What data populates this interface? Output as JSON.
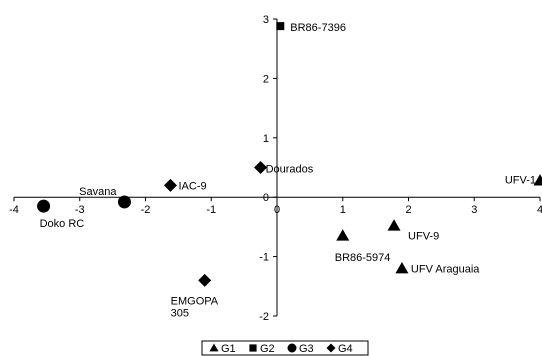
{
  "chart_data": {
    "type": "scatter",
    "title": "",
    "xlabel": "",
    "ylabel": "",
    "xlim": [
      -4,
      4
    ],
    "ylim": [
      -2,
      3
    ],
    "x_ticks": [
      "-4",
      "-3",
      "-2",
      "-1",
      "0",
      "1",
      "2",
      "3",
      "4"
    ],
    "y_ticks": [
      "-2",
      "-1",
      "0",
      "1",
      "2",
      "3"
    ],
    "grid": false,
    "legend_placement": "bottom-center",
    "legend": [
      {
        "group": "G1",
        "label": "G1",
        "marker": "triangle"
      },
      {
        "group": "G2",
        "label": "G2",
        "marker": "square"
      },
      {
        "group": "G3",
        "label": "G3",
        "marker": "circle"
      },
      {
        "group": "G4",
        "label": "G4",
        "marker": "diamond"
      }
    ],
    "points": [
      {
        "label": "BR86-7396",
        "group": "G2",
        "x": 0.05,
        "y": 2.88
      },
      {
        "label": "Dourados",
        "group": "G4",
        "x": -0.25,
        "y": 0.5
      },
      {
        "label": "IAC-9",
        "group": "G4",
        "x": -1.62,
        "y": 0.2
      },
      {
        "label": "Savana",
        "group": "G3",
        "x": -2.32,
        "y": -0.08
      },
      {
        "label": "Doko RC",
        "group": "G3",
        "x": -3.55,
        "y": -0.15
      },
      {
        "label": "EMGOPA 305",
        "group": "G4",
        "x": -1.1,
        "y": -1.4
      },
      {
        "label": "UFV-1",
        "group": "G1",
        "x": 4.0,
        "y": 0.28
      },
      {
        "label": "UFV-9",
        "group": "G1",
        "x": 1.78,
        "y": -0.48
      },
      {
        "label": "BR86-5974",
        "group": "G1",
        "x": 1.0,
        "y": -0.65
      },
      {
        "label": "UFV Araguaia",
        "group": "G1",
        "x": 1.9,
        "y": -1.2
      }
    ]
  }
}
